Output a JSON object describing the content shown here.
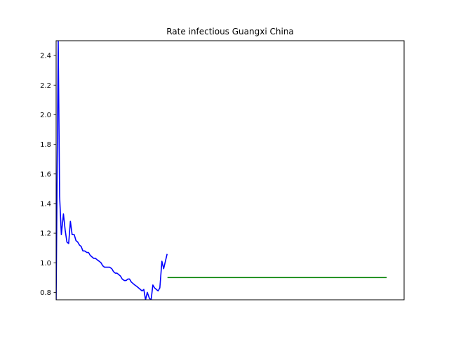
{
  "chart_data": {
    "type": "line",
    "title": "Rate infectious Guangxi China",
    "xlabel": "",
    "ylabel": "",
    "x_ticks_visible": false,
    "xlim": [
      0,
      100
    ],
    "ylim": [
      0.75,
      2.5
    ],
    "yticks": [
      0.8,
      1.0,
      1.2,
      1.4,
      1.6,
      1.8,
      2.0,
      2.2,
      2.4
    ],
    "ytick_labels": [
      "0.8",
      "1.0",
      "1.2",
      "1.4",
      "1.6",
      "1.8",
      "2.0",
      "2.2",
      "2.4"
    ],
    "grid": false,
    "series": [
      {
        "color": "#0000ff",
        "x": [
          0.0,
          0.6,
          1.0,
          1.5,
          2.1,
          2.6,
          3.1,
          3.6,
          4.1,
          4.6,
          5.2,
          5.7,
          6.2,
          6.7,
          7.2,
          7.7,
          8.2,
          8.8,
          9.3,
          9.8,
          10.3,
          10.8,
          11.3,
          11.8,
          12.4,
          12.9,
          13.4,
          13.9,
          14.4,
          14.9,
          15.4,
          16.0,
          16.5,
          17.0,
          17.5,
          18.0,
          18.5,
          19.0,
          19.6,
          20.1,
          20.6,
          21.1,
          21.6,
          22.1,
          22.6,
          23.2,
          23.7,
          24.2,
          24.7,
          25.2,
          25.7,
          26.2,
          26.8,
          27.3,
          27.8,
          28.3,
          28.8,
          29.3,
          29.8,
          30.4,
          30.9,
          31.4,
          31.9
        ],
        "values": [
          0.75,
          2.5,
          1.45,
          1.19,
          1.33,
          1.22,
          1.14,
          1.13,
          1.28,
          1.19,
          1.19,
          1.15,
          1.14,
          1.12,
          1.11,
          1.08,
          1.08,
          1.07,
          1.07,
          1.05,
          1.04,
          1.03,
          1.03,
          1.02,
          1.01,
          1.0,
          0.98,
          0.97,
          0.97,
          0.97,
          0.97,
          0.96,
          0.94,
          0.93,
          0.93,
          0.92,
          0.91,
          0.89,
          0.88,
          0.88,
          0.89,
          0.89,
          0.87,
          0.86,
          0.85,
          0.84,
          0.83,
          0.82,
          0.81,
          0.82,
          0.75,
          0.8,
          0.76,
          0.75,
          0.85,
          0.83,
          0.82,
          0.81,
          0.83,
          1.01,
          0.96,
          1.01,
          1.06
        ]
      },
      {
        "color": "#008000",
        "x": [
          32.0,
          95.0
        ],
        "values": [
          0.9,
          0.9
        ]
      }
    ]
  }
}
